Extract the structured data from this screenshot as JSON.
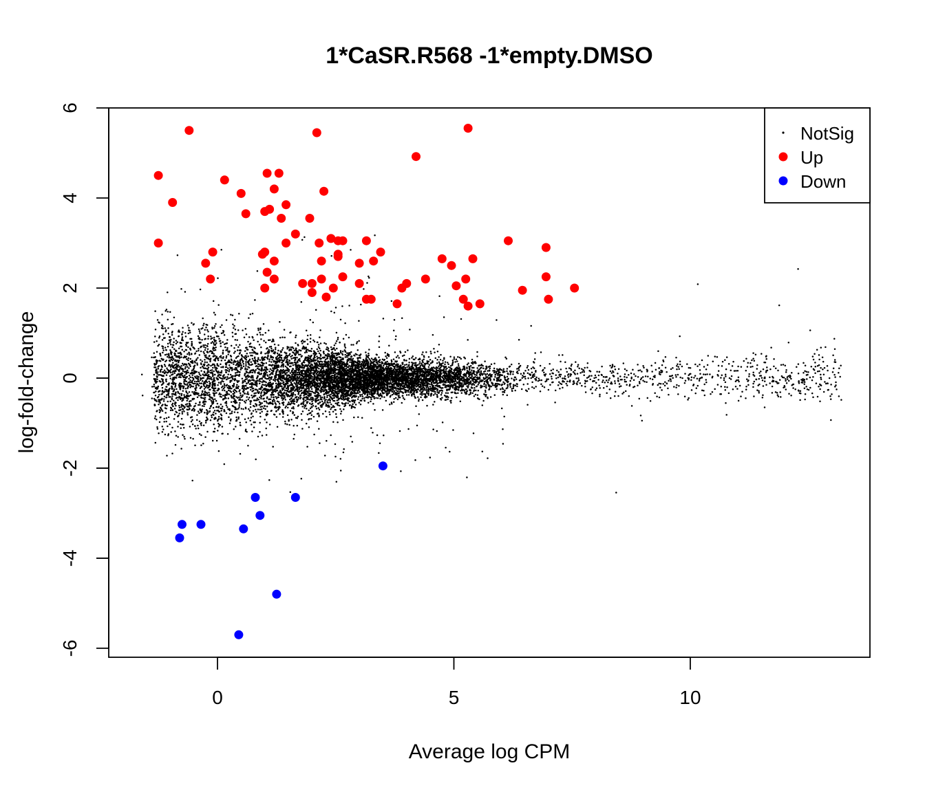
{
  "chart_data": {
    "type": "scatter",
    "title": "1*CaSR.R568 -1*empty.DMSO",
    "xlabel": "Average log CPM",
    "ylabel": "log-fold-change",
    "xlim": [
      -2.3,
      13.8
    ],
    "ylim": [
      -6.2,
      6.0
    ],
    "x_ticks": [
      0,
      5,
      10
    ],
    "y_ticks": [
      -6,
      -4,
      -2,
      0,
      2,
      4,
      6
    ],
    "x_tick_labels": [
      "0",
      "5",
      "10"
    ],
    "y_tick_labels": [
      "-6",
      "-4",
      "-2",
      "0",
      "2",
      "4",
      "6"
    ],
    "grid": false,
    "legend": {
      "position": "top-right",
      "entries": [
        {
          "label": "NotSig",
          "color": "#000000",
          "marker": "small-dot"
        },
        {
          "label": "Up",
          "color": "#ff0000",
          "marker": "dot"
        },
        {
          "label": "Down",
          "color": "#0000ff",
          "marker": "dot"
        }
      ]
    },
    "series": [
      {
        "name": "Up",
        "color": "#ff0000",
        "points": [
          [
            -0.6,
            5.5
          ],
          [
            2.1,
            5.45
          ],
          [
            5.3,
            5.55
          ],
          [
            4.2,
            4.92
          ],
          [
            -1.25,
            4.5
          ],
          [
            -0.95,
            3.9
          ],
          [
            0.15,
            4.4
          ],
          [
            0.5,
            4.1
          ],
          [
            0.6,
            3.65
          ],
          [
            1.05,
            4.55
          ],
          [
            1.3,
            4.55
          ],
          [
            1.2,
            4.2
          ],
          [
            2.25,
            4.15
          ],
          [
            1.0,
            3.7
          ],
          [
            1.1,
            3.75
          ],
          [
            1.45,
            3.85
          ],
          [
            1.35,
            3.55
          ],
          [
            1.95,
            3.55
          ],
          [
            -1.25,
            3.0
          ],
          [
            -0.1,
            2.8
          ],
          [
            -0.25,
            2.55
          ],
          [
            -0.15,
            2.2
          ],
          [
            0.95,
            2.75
          ],
          [
            1.0,
            2.8
          ],
          [
            1.2,
            2.6
          ],
          [
            1.05,
            2.35
          ],
          [
            1.2,
            2.2
          ],
          [
            1.0,
            2.0
          ],
          [
            1.45,
            3.0
          ],
          [
            1.65,
            3.2
          ],
          [
            1.8,
            2.1
          ],
          [
            2.0,
            2.1
          ],
          [
            2.0,
            1.9
          ],
          [
            2.15,
            3.0
          ],
          [
            2.2,
            2.6
          ],
          [
            2.2,
            2.2
          ],
          [
            2.3,
            1.8
          ],
          [
            2.4,
            3.1
          ],
          [
            2.45,
            2.0
          ],
          [
            2.55,
            2.7
          ],
          [
            2.55,
            2.75
          ],
          [
            2.55,
            3.05
          ],
          [
            2.65,
            3.05
          ],
          [
            2.65,
            2.25
          ],
          [
            3.0,
            2.55
          ],
          [
            3.0,
            2.1
          ],
          [
            3.15,
            3.05
          ],
          [
            3.15,
            1.75
          ],
          [
            3.25,
            1.75
          ],
          [
            3.3,
            2.6
          ],
          [
            3.45,
            2.8
          ],
          [
            3.8,
            1.65
          ],
          [
            3.9,
            2.0
          ],
          [
            4.0,
            2.1
          ],
          [
            4.4,
            2.2
          ],
          [
            4.75,
            2.65
          ],
          [
            4.95,
            2.5
          ],
          [
            5.05,
            2.05
          ],
          [
            5.2,
            1.75
          ],
          [
            5.25,
            2.2
          ],
          [
            5.3,
            1.6
          ],
          [
            5.4,
            2.65
          ],
          [
            5.55,
            1.65
          ],
          [
            6.15,
            3.05
          ],
          [
            6.45,
            1.95
          ],
          [
            6.95,
            2.9
          ],
          [
            6.95,
            2.25
          ],
          [
            7.0,
            1.75
          ],
          [
            7.55,
            2.0
          ]
        ]
      },
      {
        "name": "Down",
        "color": "#0000ff",
        "points": [
          [
            -0.8,
            -3.55
          ],
          [
            -0.75,
            -3.25
          ],
          [
            -0.35,
            -3.25
          ],
          [
            0.45,
            -5.7
          ],
          [
            0.55,
            -3.35
          ],
          [
            0.8,
            -2.65
          ],
          [
            0.9,
            -3.05
          ],
          [
            1.25,
            -4.8
          ],
          [
            1.65,
            -2.65
          ],
          [
            3.5,
            -1.95
          ]
        ]
      }
    ]
  }
}
